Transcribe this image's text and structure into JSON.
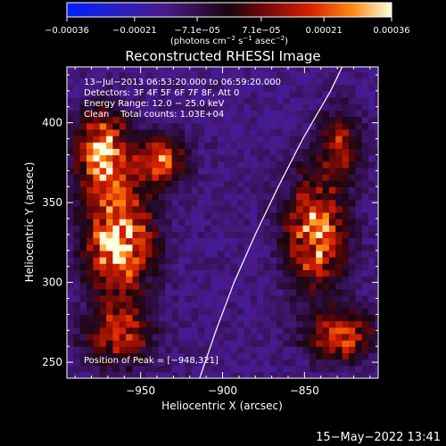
{
  "chart_data": {
    "type": "heatmap",
    "title": "Reconstructed RHESSI Image",
    "xlabel": "Heliocentric X (arcsec)",
    "ylabel": "Heliocentric Y (arcsec)",
    "xlim": [
      -995,
      -805
    ],
    "ylim": [
      240,
      435
    ],
    "x_ticks": [
      -950,
      -900,
      -850
    ],
    "x_tick_labels": [
      "−950",
      "−900",
      "−850"
    ],
    "y_ticks": [
      250,
      300,
      350,
      400
    ],
    "y_tick_labels": [
      "250",
      "300",
      "350",
      "400"
    ],
    "colorbar": {
      "min": -0.00036,
      "max": 0.00036,
      "ticks": [
        -0.00036,
        -0.00021,
        -7.1e-05,
        7.1e-05,
        0.00021,
        0.00036
      ],
      "tick_labels": [
        "−0.00036",
        "−0.00021",
        "−7.1e−05",
        "7.1e−05",
        "0.00021",
        "0.00036"
      ],
      "units_prefix": "(photons cm",
      "units_exp1": "−2",
      "units_mid": " s",
      "units_exp2": "−1",
      "units_mid2": " asec",
      "units_exp3": "−2",
      "units_suffix": ")"
    },
    "annotations": [
      "13−Jul−2013 06:53:20.000 to 06:59:20.000",
      "Detectors: 3F 4F 5F 6F 7F 8F, Att 0",
      "Energy Range: 12.0 − 25.0 keV",
      "Clean    Total counts: 1.03E+04"
    ],
    "peak_label": "Position of Peak = [−948,321]",
    "peak": [
      -948,
      321
    ],
    "limb_curve": [
      [
        -914,
        240
      ],
      [
        -904,
        270
      ],
      [
        -893,
        300
      ],
      [
        -880,
        330
      ],
      [
        -866,
        360
      ],
      [
        -851,
        390
      ],
      [
        -834,
        420
      ],
      [
        -827,
        435
      ]
    ],
    "bright_regions": [
      {
        "x": -965,
        "y": 325,
        "level": 1.0,
        "sx": 20,
        "sy": 35
      },
      {
        "x": -975,
        "y": 380,
        "level": 0.9,
        "sx": 15,
        "sy": 25
      },
      {
        "x": -940,
        "y": 375,
        "level": 0.7,
        "sx": 15,
        "sy": 15
      },
      {
        "x": -965,
        "y": 265,
        "level": 0.6,
        "sx": 20,
        "sy": 18
      },
      {
        "x": -845,
        "y": 330,
        "level": 0.85,
        "sx": 18,
        "sy": 35
      },
      {
        "x": -830,
        "y": 265,
        "level": 0.7,
        "sx": 20,
        "sy": 15
      },
      {
        "x": -830,
        "y": 385,
        "level": 0.55,
        "sx": 12,
        "sy": 20
      }
    ]
  },
  "footer": {
    "timestamp": "15−May−2022 13:41"
  }
}
